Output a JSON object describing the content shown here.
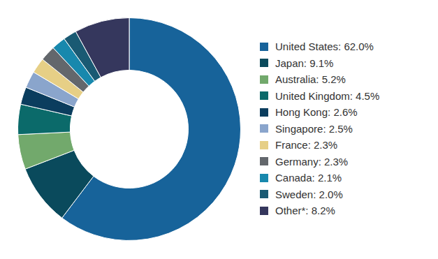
{
  "chart_data": {
    "type": "doughnut",
    "categories": [
      "United States: 62.0%",
      "Japan: 9.1%",
      "Australia: 5.2%",
      "United Kingdom: 4.5%",
      "Hong Kong: 2.6%",
      "Singapore: 2.5%",
      "France: 2.3%",
      "Germany: 2.3%",
      "Canada: 2.1%",
      "Sweden: 2.0%",
      "Other*: 8.2%"
    ],
    "values": [
      62.0,
      9.1,
      5.2,
      4.5,
      2.6,
      2.5,
      2.3,
      2.3,
      2.1,
      2.0,
      8.2
    ],
    "colors": [
      "#17639a",
      "#0a4a5c",
      "#72a96c",
      "#0b6a6a",
      "#0b3d5e",
      "#8aa5cc",
      "#e6cf86",
      "#63676c",
      "#1888ad",
      "#1a5a73",
      "#35375d"
    ],
    "legend": "right"
  }
}
